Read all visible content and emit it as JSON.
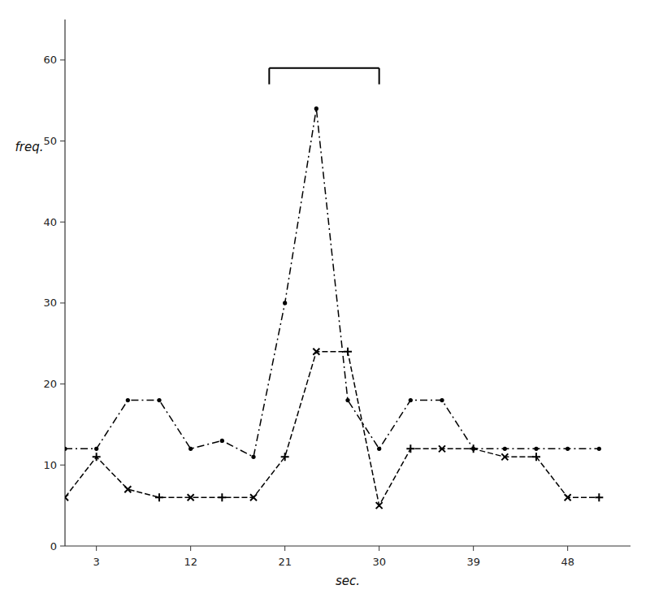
{
  "chart_data": {
    "type": "line",
    "xlabel": "sec.",
    "ylabel": "freq.",
    "xlim": [
      0,
      54
    ],
    "ylim": [
      0,
      65
    ],
    "xticks": [
      3,
      12,
      21,
      30,
      39,
      48
    ],
    "yticks": [
      0,
      10,
      20,
      30,
      40,
      50,
      60
    ],
    "grid": false,
    "x": [
      0,
      3,
      6,
      9,
      12,
      15,
      18,
      21,
      24,
      27,
      30,
      33,
      36,
      39,
      42,
      45,
      48,
      51
    ],
    "series": [
      {
        "values": [
          12,
          12,
          18,
          18,
          12,
          13,
          11,
          30,
          54,
          18,
          12,
          18,
          18,
          12,
          12,
          12,
          12,
          12
        ],
        "color": "#000000",
        "marker": "dot",
        "line_style": "dashdot"
      },
      {
        "values": [
          6,
          11,
          7,
          6,
          6,
          6,
          6,
          11,
          24,
          24,
          5,
          12,
          12,
          12,
          11,
          11,
          6,
          6
        ],
        "color": "#000000",
        "marker": "alternating-x-plus",
        "line_style": "dashed"
      }
    ],
    "bracket": {
      "x1": 19.5,
      "x2": 30,
      "y": 59,
      "leg": 2
    }
  }
}
